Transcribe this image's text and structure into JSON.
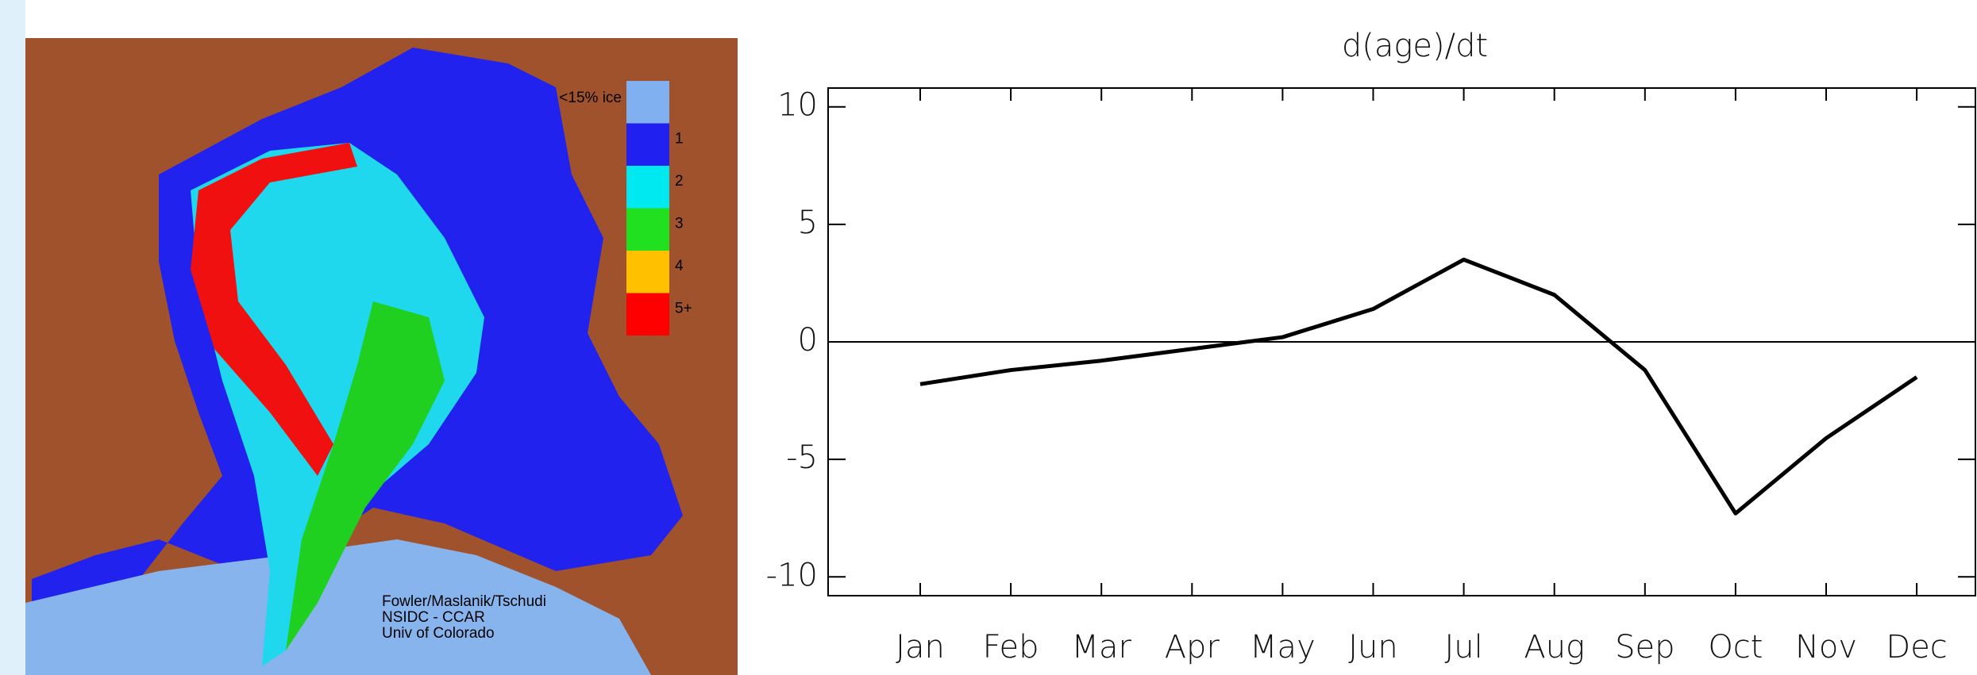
{
  "chart_data": {
    "type": "line",
    "title": "d(age)/dt",
    "categories": [
      "Jan",
      "Feb",
      "Mar",
      "Apr",
      "May",
      "Jun",
      "Jul",
      "Aug",
      "Sep",
      "Oct",
      "Nov",
      "Dec"
    ],
    "values": [
      -1.8,
      -1.2,
      -0.8,
      -0.3,
      0.2,
      1.4,
      3.5,
      2.0,
      -1.2,
      -7.3,
      -4.1,
      -1.5
    ],
    "color": "#000000",
    "ylim": [
      -10.8,
      10.8
    ],
    "yticks": [
      -10,
      -5,
      0,
      5,
      10
    ],
    "zero_line": true
  },
  "map": {
    "legend": [
      "<15% ice",
      "1",
      "2",
      "3",
      "4",
      "5+"
    ],
    "legend_colors": [
      "#80b0f0",
      "#2020f0",
      "#00e8f0",
      "#20e020",
      "#ffc000",
      "#ff0000"
    ],
    "credit": [
      "Fowler/Maslanik/Tschudi",
      "NSIDC - CCAR",
      "Univ of Colorado"
    ]
  }
}
